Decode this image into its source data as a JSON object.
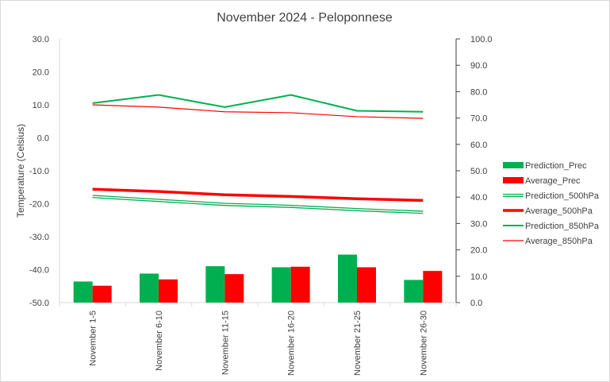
{
  "chart_data": {
    "type": "bar",
    "title": "November 2024 - Peloponnese",
    "ylabel": "Temperature (Celsius)",
    "y2label": "",
    "xlabel": "",
    "categories": [
      "November 1-5",
      "November 6-10",
      "November 11-15",
      "November 16-20",
      "November 21-25",
      "November 26-30"
    ],
    "ylim": [
      -50,
      30
    ],
    "y2lim": [
      0,
      100
    ],
    "yticks": [
      "-50.0",
      "-40.0",
      "-30.0",
      "-20.0",
      "-10.0",
      "0.0",
      "10.0",
      "20.0",
      "30.0"
    ],
    "y2ticks": [
      "0.0",
      "10.0",
      "20.0",
      "30.0",
      "40.0",
      "50.0",
      "60.0",
      "70.0",
      "80.0",
      "90.0",
      "100.0"
    ],
    "grid": false,
    "legend_position": "right",
    "series": [
      {
        "name": "Prediction_Prec",
        "kind": "bar",
        "axis": "secondary",
        "color": "#00b050",
        "values": [
          8.0,
          11.0,
          13.8,
          13.4,
          18.2,
          8.6
        ]
      },
      {
        "name": "Average_Prec",
        "kind": "bar",
        "axis": "secondary",
        "color": "#ff0000",
        "values": [
          6.4,
          8.8,
          10.8,
          13.6,
          13.4,
          12.0
        ]
      },
      {
        "name": "Prediction_500hPa",
        "kind": "line",
        "style": "double",
        "axis": "primary",
        "color": "#00b050",
        "values": [
          -17.8,
          -19.0,
          -20.2,
          -20.8,
          -21.8,
          -22.6
        ]
      },
      {
        "name": "Average_500hPa",
        "kind": "line",
        "style": "thick",
        "axis": "primary",
        "color": "#ff0000",
        "values": [
          -15.6,
          -16.3,
          -17.3,
          -17.8,
          -18.5,
          -19.0
        ]
      },
      {
        "name": "Prediction_850hPa",
        "kind": "line",
        "style": "normal",
        "axis": "primary",
        "color": "#00b050",
        "values": [
          10.5,
          13.0,
          9.3,
          13.0,
          8.2,
          7.9
        ]
      },
      {
        "name": "Average_850hPa",
        "kind": "line",
        "style": "thin",
        "axis": "primary",
        "color": "#ff0000",
        "values": [
          10.0,
          9.3,
          7.9,
          7.6,
          6.4,
          5.9
        ]
      }
    ]
  }
}
